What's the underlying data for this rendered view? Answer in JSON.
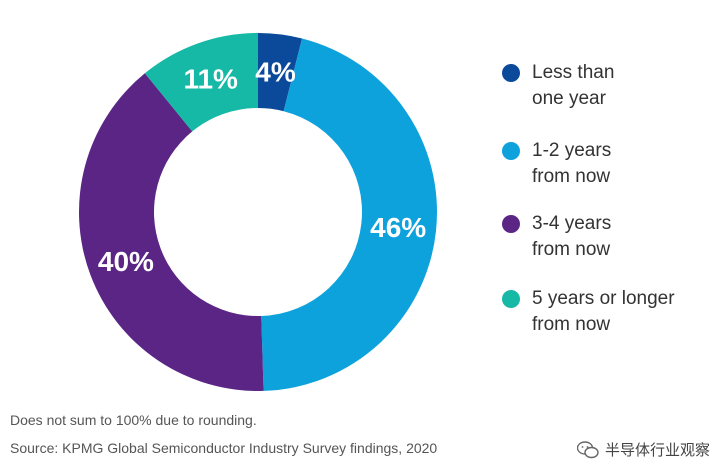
{
  "chart_data": {
    "type": "pie",
    "donut": true,
    "title": "",
    "categories": [
      "Less than one year",
      "1-2 years from now",
      "3-4 years from now",
      "5 years or longer from now"
    ],
    "values": [
      4,
      46,
      40,
      11
    ],
    "labels": [
      "4%",
      "46%",
      "40%",
      "11%"
    ],
    "colors": [
      "#0b4a9a",
      "#0ea2dd",
      "#5b2585",
      "#16b8a6"
    ],
    "legend_placement": "right"
  },
  "legend": [
    {
      "text": "Less than\none year",
      "color": "#0b4a9a"
    },
    {
      "text": "1-2 years\nfrom now",
      "color": "#0ea2dd"
    },
    {
      "text": "3-4 years\nfrom now",
      "color": "#5b2585"
    },
    {
      "text": "5 years or longer\nfrom now",
      "color": "#16b8a6"
    }
  ],
  "footnote": "Does not sum to 100% due to rounding.",
  "source": "Source: KPMG Global Semiconductor Industry Survey findings, 2020",
  "watermark": {
    "icon": "wechat-icon",
    "text": "半导体行业观察"
  }
}
